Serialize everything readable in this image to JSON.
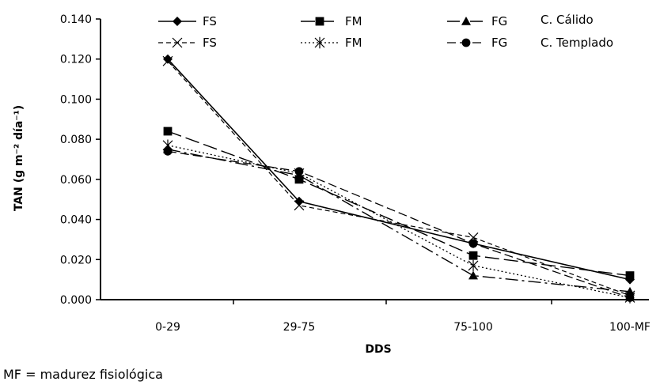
{
  "chart_data": {
    "type": "line",
    "categories": [
      "0-29",
      "29-75",
      "75-100",
      "100-MF"
    ],
    "xlabel": "DDS",
    "ylabel": "TAN (g m⁻² día⁻¹)",
    "ylim": [
      0,
      0.14
    ],
    "yticks": [
      "0.000",
      "0.020",
      "0.040",
      "0.060",
      "0.080",
      "0.100",
      "0.120",
      "0.140"
    ],
    "grid": false,
    "legend_position": "top",
    "legend_groups": [
      {
        "label": "C.  Cálido",
        "series_indices": [
          0,
          1,
          2
        ]
      },
      {
        "label": "C. Templado",
        "series_indices": [
          3,
          4,
          5
        ]
      }
    ],
    "series": [
      {
        "name": "FS",
        "marker": "diamond",
        "line": "solid",
        "values": [
          0.12,
          0.049,
          0.028,
          0.01
        ]
      },
      {
        "name": "FM",
        "marker": "square",
        "line": "long-dash",
        "values": [
          0.084,
          0.06,
          0.022,
          0.012
        ]
      },
      {
        "name": "FG",
        "marker": "triangle",
        "line": "dash-dot",
        "values": [
          0.075,
          0.062,
          0.012,
          0.004
        ]
      },
      {
        "name": "FS",
        "marker": "x",
        "line": "short-dash",
        "values": [
          0.119,
          0.047,
          0.031,
          0.002
        ]
      },
      {
        "name": "FM",
        "marker": "asterisk",
        "line": "dotted",
        "values": [
          0.077,
          0.063,
          0.017,
          0.001
        ]
      },
      {
        "name": "FG",
        "marker": "circle",
        "line": "dash",
        "values": [
          0.074,
          0.064,
          0.028,
          0.001
        ]
      }
    ]
  },
  "footnote": "MF = madurez fisiológica"
}
